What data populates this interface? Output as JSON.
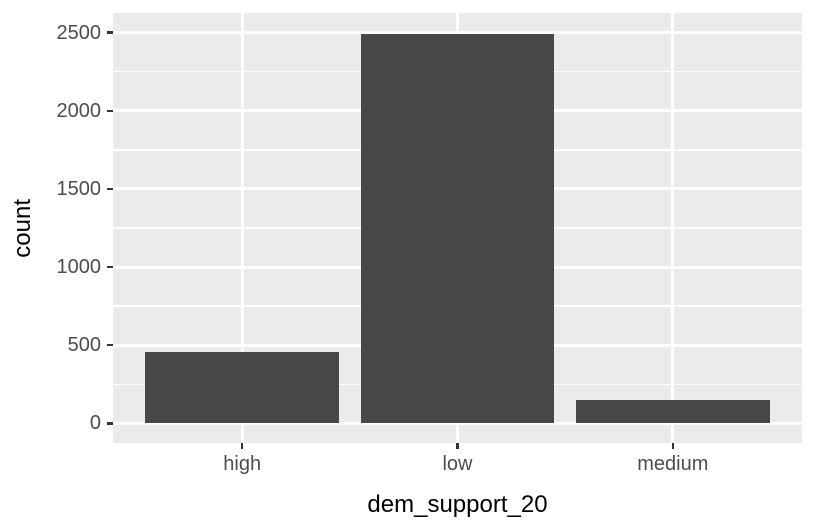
{
  "chart_data": {
    "type": "bar",
    "categories": [
      "high",
      "low",
      "medium"
    ],
    "values": [
      455,
      2490,
      150
    ],
    "xlabel": "dem_support_20",
    "ylabel": "count",
    "ylim": [
      0,
      2500
    ],
    "yticks": [
      0,
      500,
      1000,
      1500,
      2000,
      2500
    ],
    "y_minor_step": 250,
    "legend": "none",
    "grid": true,
    "style": "ggplot2-default",
    "colors": {
      "bar_fill": "#474747",
      "panel_background": "#EBEBEB",
      "grid_major": "#FFFFFF",
      "grid_minor": "#FFFFFF",
      "tick_mark": "#333333",
      "axis_text": "#4D4D4D",
      "axis_title": "#000000",
      "figure_background": "#FFFFFF"
    }
  }
}
